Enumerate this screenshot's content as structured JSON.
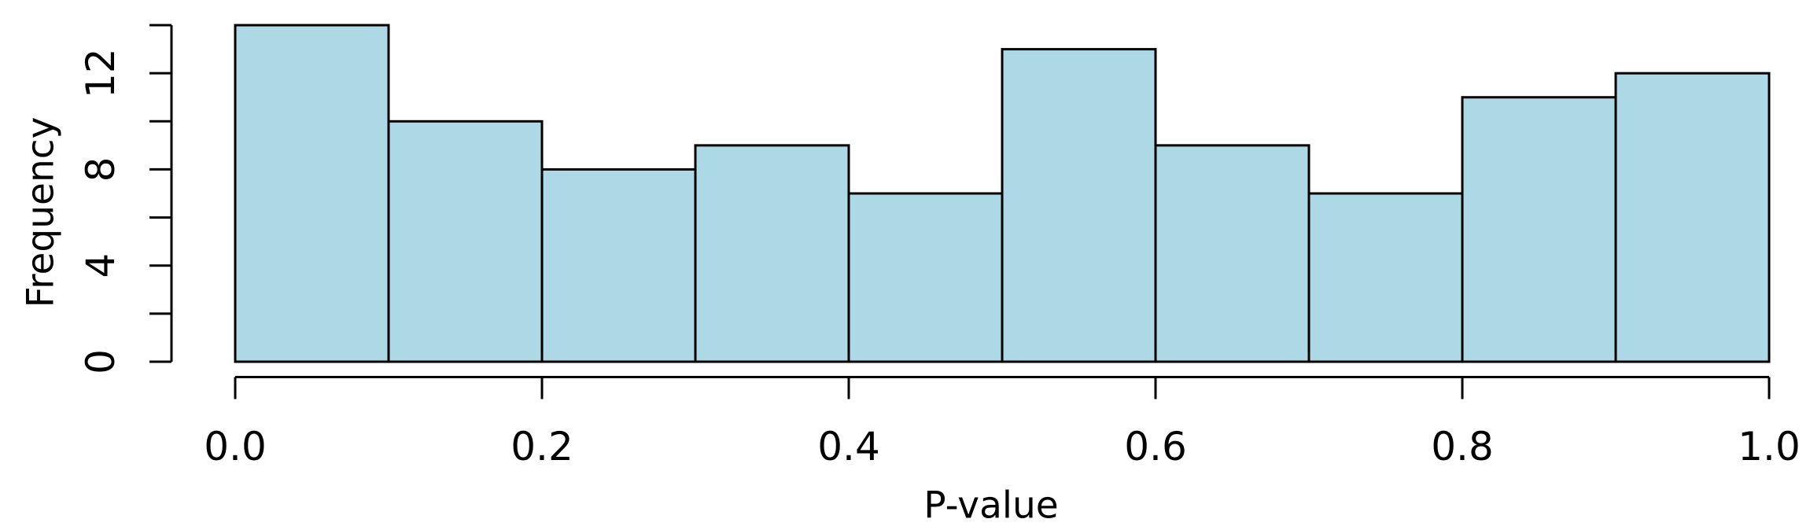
{
  "figure": {
    "background": "#FFFFFF"
  },
  "chart_data": {
    "type": "bar",
    "subtype": "histogram",
    "title": "",
    "xlabel": "P-value",
    "ylabel": "Frequency",
    "bin_width": 0.1,
    "bin_edges": [
      0.0,
      0.1,
      0.2,
      0.3,
      0.4,
      0.5,
      0.6,
      0.7,
      0.8,
      0.9,
      1.0
    ],
    "values": [
      14,
      10,
      8,
      9,
      7,
      13,
      9,
      7,
      11,
      12
    ],
    "xlim": [
      0.0,
      1.0
    ],
    "ylim": [
      0,
      14
    ],
    "x_ticks": {
      "values": [
        0.0,
        0.2,
        0.4,
        0.6,
        0.8,
        1.0
      ],
      "labels": [
        "0.0",
        "0.2",
        "0.4",
        "0.6",
        "0.8",
        "1.0"
      ]
    },
    "y_ticks": {
      "minor_step": 2,
      "values": [
        0,
        2,
        4,
        6,
        8,
        10,
        12,
        14
      ],
      "labeled_values": [
        0,
        4,
        8,
        12
      ],
      "labels": [
        "0",
        "4",
        "8",
        "12"
      ]
    },
    "grid": false,
    "legend": null,
    "colors": {
      "bar_fill": "#ADD8E6",
      "bar_stroke": "#000000",
      "axis": "#000000",
      "text": "#000000"
    }
  }
}
